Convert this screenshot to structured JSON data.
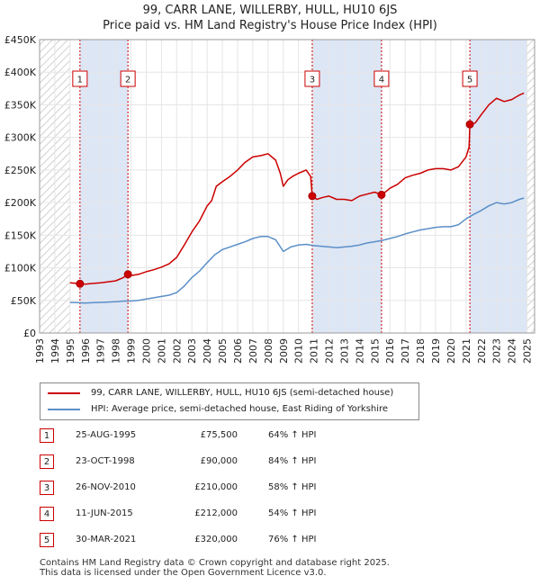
{
  "title": "99, CARR LANE, WILLERBY, HULL, HU10 6JS",
  "subtitle": "Price paid vs. HM Land Registry's House Price Index (HPI)",
  "colors": {
    "property": "#cc0000",
    "hpi": "#5b8fc7",
    "shade": "#dde6f5",
    "marker_border": "#cc0000"
  },
  "legend": {
    "property": "99, CARR LANE, WILLERBY, HULL, HU10 6JS (semi-detached house)",
    "hpi": "HPI: Average price, semi-detached house, East Riding of Yorkshire"
  },
  "sales": [
    {
      "num": "1",
      "date": "25-AUG-1995",
      "price": "£75,500",
      "hpi": "64% ↑ HPI"
    },
    {
      "num": "2",
      "date": "23-OCT-1998",
      "price": "£90,000",
      "hpi": "84% ↑ HPI"
    },
    {
      "num": "3",
      "date": "26-NOV-2010",
      "price": "£210,000",
      "hpi": "58% ↑ HPI"
    },
    {
      "num": "4",
      "date": "11-JUN-2015",
      "price": "£212,000",
      "hpi": "54% ↑ HPI"
    },
    {
      "num": "5",
      "date": "30-MAR-2021",
      "price": "£320,000",
      "hpi": "76% ↑ HPI"
    }
  ],
  "footer": {
    "line1": "Contains HM Land Registry data © Crown copyright and database right 2025.",
    "line2": "This data is licensed under the Open Government Licence v3.0."
  },
  "chart_data": {
    "type": "line",
    "title": "99, CARR LANE, WILLERBY, HULL, HU10 6JS",
    "xlabel": "",
    "ylabel": "",
    "xlim": [
      1993,
      2025
    ],
    "ylim": [
      0,
      450000
    ],
    "x_ticks": [
      "1993",
      "1994",
      "1995",
      "1996",
      "1997",
      "1998",
      "1999",
      "2000",
      "2001",
      "2002",
      "2003",
      "2004",
      "2005",
      "2006",
      "2007",
      "2008",
      "2009",
      "2010",
      "2011",
      "2012",
      "2013",
      "2014",
      "2015",
      "2016",
      "2017",
      "2018",
      "2019",
      "2020",
      "2021",
      "2022",
      "2023",
      "2024",
      "2025"
    ],
    "y_ticks": [
      {
        "value": 0,
        "label": "£0"
      },
      {
        "value": 50000,
        "label": "£50K"
      },
      {
        "value": 100000,
        "label": "£100K"
      },
      {
        "value": 150000,
        "label": "£150K"
      },
      {
        "value": 200000,
        "label": "£200K"
      },
      {
        "value": 250000,
        "label": "£250K"
      },
      {
        "value": 300000,
        "label": "£300K"
      },
      {
        "value": 350000,
        "label": "£350K"
      },
      {
        "value": 400000,
        "label": "£400K"
      },
      {
        "value": 450000,
        "label": "£450K"
      }
    ],
    "grid": true,
    "hatched_ranges": [
      [
        1993,
        1995
      ],
      [
        2025,
        2025.5
      ]
    ],
    "shaded_periods": [
      [
        1995.65,
        1998.8
      ],
      [
        2010.9,
        2015.45
      ],
      [
        2021.25,
        2025
      ]
    ],
    "sale_markers": [
      {
        "label": "1",
        "x": 1995.65,
        "y": 75500
      },
      {
        "label": "2",
        "x": 1998.8,
        "y": 90000
      },
      {
        "label": "3",
        "x": 2010.9,
        "y": 210000
      },
      {
        "label": "4",
        "x": 2015.45,
        "y": 212000
      },
      {
        "label": "5",
        "x": 2021.25,
        "y": 320000
      }
    ],
    "series": [
      {
        "name": "99, CARR LANE, WILLERBY, HULL, HU10 6JS (semi-detached house)",
        "points": [
          [
            1995.0,
            77000
          ],
          [
            1995.3,
            76500
          ],
          [
            1995.65,
            75500
          ],
          [
            1996.0,
            75000
          ],
          [
            1996.5,
            76000
          ],
          [
            1997.0,
            77000
          ],
          [
            1997.5,
            78500
          ],
          [
            1998.0,
            80000
          ],
          [
            1998.5,
            85000
          ],
          [
            1998.8,
            90000
          ],
          [
            1999.0,
            88000
          ],
          [
            1999.5,
            90000
          ],
          [
            2000.0,
            94000
          ],
          [
            2000.5,
            97000
          ],
          [
            2001.0,
            101000
          ],
          [
            2001.5,
            106000
          ],
          [
            2002.0,
            116000
          ],
          [
            2002.5,
            135000
          ],
          [
            2003.0,
            155000
          ],
          [
            2003.5,
            172000
          ],
          [
            2004.0,
            195000
          ],
          [
            2004.3,
            203000
          ],
          [
            2004.6,
            225000
          ],
          [
            2005.0,
            232000
          ],
          [
            2005.5,
            240000
          ],
          [
            2006.0,
            250000
          ],
          [
            2006.5,
            262000
          ],
          [
            2007.0,
            270000
          ],
          [
            2007.5,
            272000
          ],
          [
            2008.0,
            275000
          ],
          [
            2008.5,
            265000
          ],
          [
            2008.8,
            245000
          ],
          [
            2009.0,
            225000
          ],
          [
            2009.3,
            235000
          ],
          [
            2009.6,
            240000
          ],
          [
            2010.0,
            245000
          ],
          [
            2010.5,
            250000
          ],
          [
            2010.8,
            240000
          ],
          [
            2010.9,
            210000
          ],
          [
            2011.2,
            205000
          ],
          [
            2011.6,
            208000
          ],
          [
            2012.0,
            210000
          ],
          [
            2012.5,
            205000
          ],
          [
            2013.0,
            205000
          ],
          [
            2013.5,
            203000
          ],
          [
            2014.0,
            210000
          ],
          [
            2014.5,
            213000
          ],
          [
            2015.0,
            216000
          ],
          [
            2015.45,
            212000
          ],
          [
            2015.8,
            218000
          ],
          [
            2016.0,
            222000
          ],
          [
            2016.5,
            228000
          ],
          [
            2017.0,
            238000
          ],
          [
            2017.5,
            242000
          ],
          [
            2018.0,
            245000
          ],
          [
            2018.5,
            250000
          ],
          [
            2019.0,
            252000
          ],
          [
            2019.5,
            252000
          ],
          [
            2020.0,
            250000
          ],
          [
            2020.5,
            255000
          ],
          [
            2021.0,
            270000
          ],
          [
            2021.2,
            285000
          ],
          [
            2021.25,
            320000
          ],
          [
            2021.6,
            322000
          ],
          [
            2022.0,
            335000
          ],
          [
            2022.5,
            350000
          ],
          [
            2023.0,
            360000
          ],
          [
            2023.5,
            355000
          ],
          [
            2024.0,
            358000
          ],
          [
            2024.5,
            365000
          ],
          [
            2024.8,
            368000
          ]
        ]
      },
      {
        "name": "HPI: Average price, semi-detached house, East Riding of Yorkshire",
        "points": [
          [
            1995.0,
            47000
          ],
          [
            1995.5,
            46500
          ],
          [
            1996.0,
            46000
          ],
          [
            1996.5,
            46500
          ],
          [
            1997.0,
            47000
          ],
          [
            1997.5,
            47500
          ],
          [
            1998.0,
            48000
          ],
          [
            1998.5,
            49000
          ],
          [
            1999.0,
            49000
          ],
          [
            1999.5,
            50000
          ],
          [
            2000.0,
            52000
          ],
          [
            2000.5,
            54000
          ],
          [
            2001.0,
            56000
          ],
          [
            2001.5,
            58000
          ],
          [
            2002.0,
            62000
          ],
          [
            2002.5,
            72000
          ],
          [
            2003.0,
            85000
          ],
          [
            2003.5,
            95000
          ],
          [
            2004.0,
            108000
          ],
          [
            2004.5,
            120000
          ],
          [
            2005.0,
            128000
          ],
          [
            2005.5,
            132000
          ],
          [
            2006.0,
            136000
          ],
          [
            2006.5,
            140000
          ],
          [
            2007.0,
            145000
          ],
          [
            2007.5,
            148000
          ],
          [
            2008.0,
            148000
          ],
          [
            2008.5,
            143000
          ],
          [
            2009.0,
            125000
          ],
          [
            2009.5,
            132000
          ],
          [
            2010.0,
            135000
          ],
          [
            2010.5,
            136000
          ],
          [
            2011.0,
            134000
          ],
          [
            2011.5,
            133000
          ],
          [
            2012.0,
            132000
          ],
          [
            2012.5,
            131000
          ],
          [
            2013.0,
            132000
          ],
          [
            2013.5,
            133000
          ],
          [
            2014.0,
            135000
          ],
          [
            2014.5,
            138000
          ],
          [
            2015.0,
            140000
          ],
          [
            2015.5,
            142000
          ],
          [
            2016.0,
            145000
          ],
          [
            2016.5,
            148000
          ],
          [
            2017.0,
            152000
          ],
          [
            2017.5,
            155000
          ],
          [
            2018.0,
            158000
          ],
          [
            2018.5,
            160000
          ],
          [
            2019.0,
            162000
          ],
          [
            2019.5,
            163000
          ],
          [
            2020.0,
            163000
          ],
          [
            2020.5,
            166000
          ],
          [
            2021.0,
            175000
          ],
          [
            2021.5,
            182000
          ],
          [
            2022.0,
            188000
          ],
          [
            2022.5,
            195000
          ],
          [
            2023.0,
            200000
          ],
          [
            2023.5,
            198000
          ],
          [
            2024.0,
            200000
          ],
          [
            2024.5,
            205000
          ],
          [
            2024.8,
            207000
          ]
        ]
      }
    ]
  }
}
